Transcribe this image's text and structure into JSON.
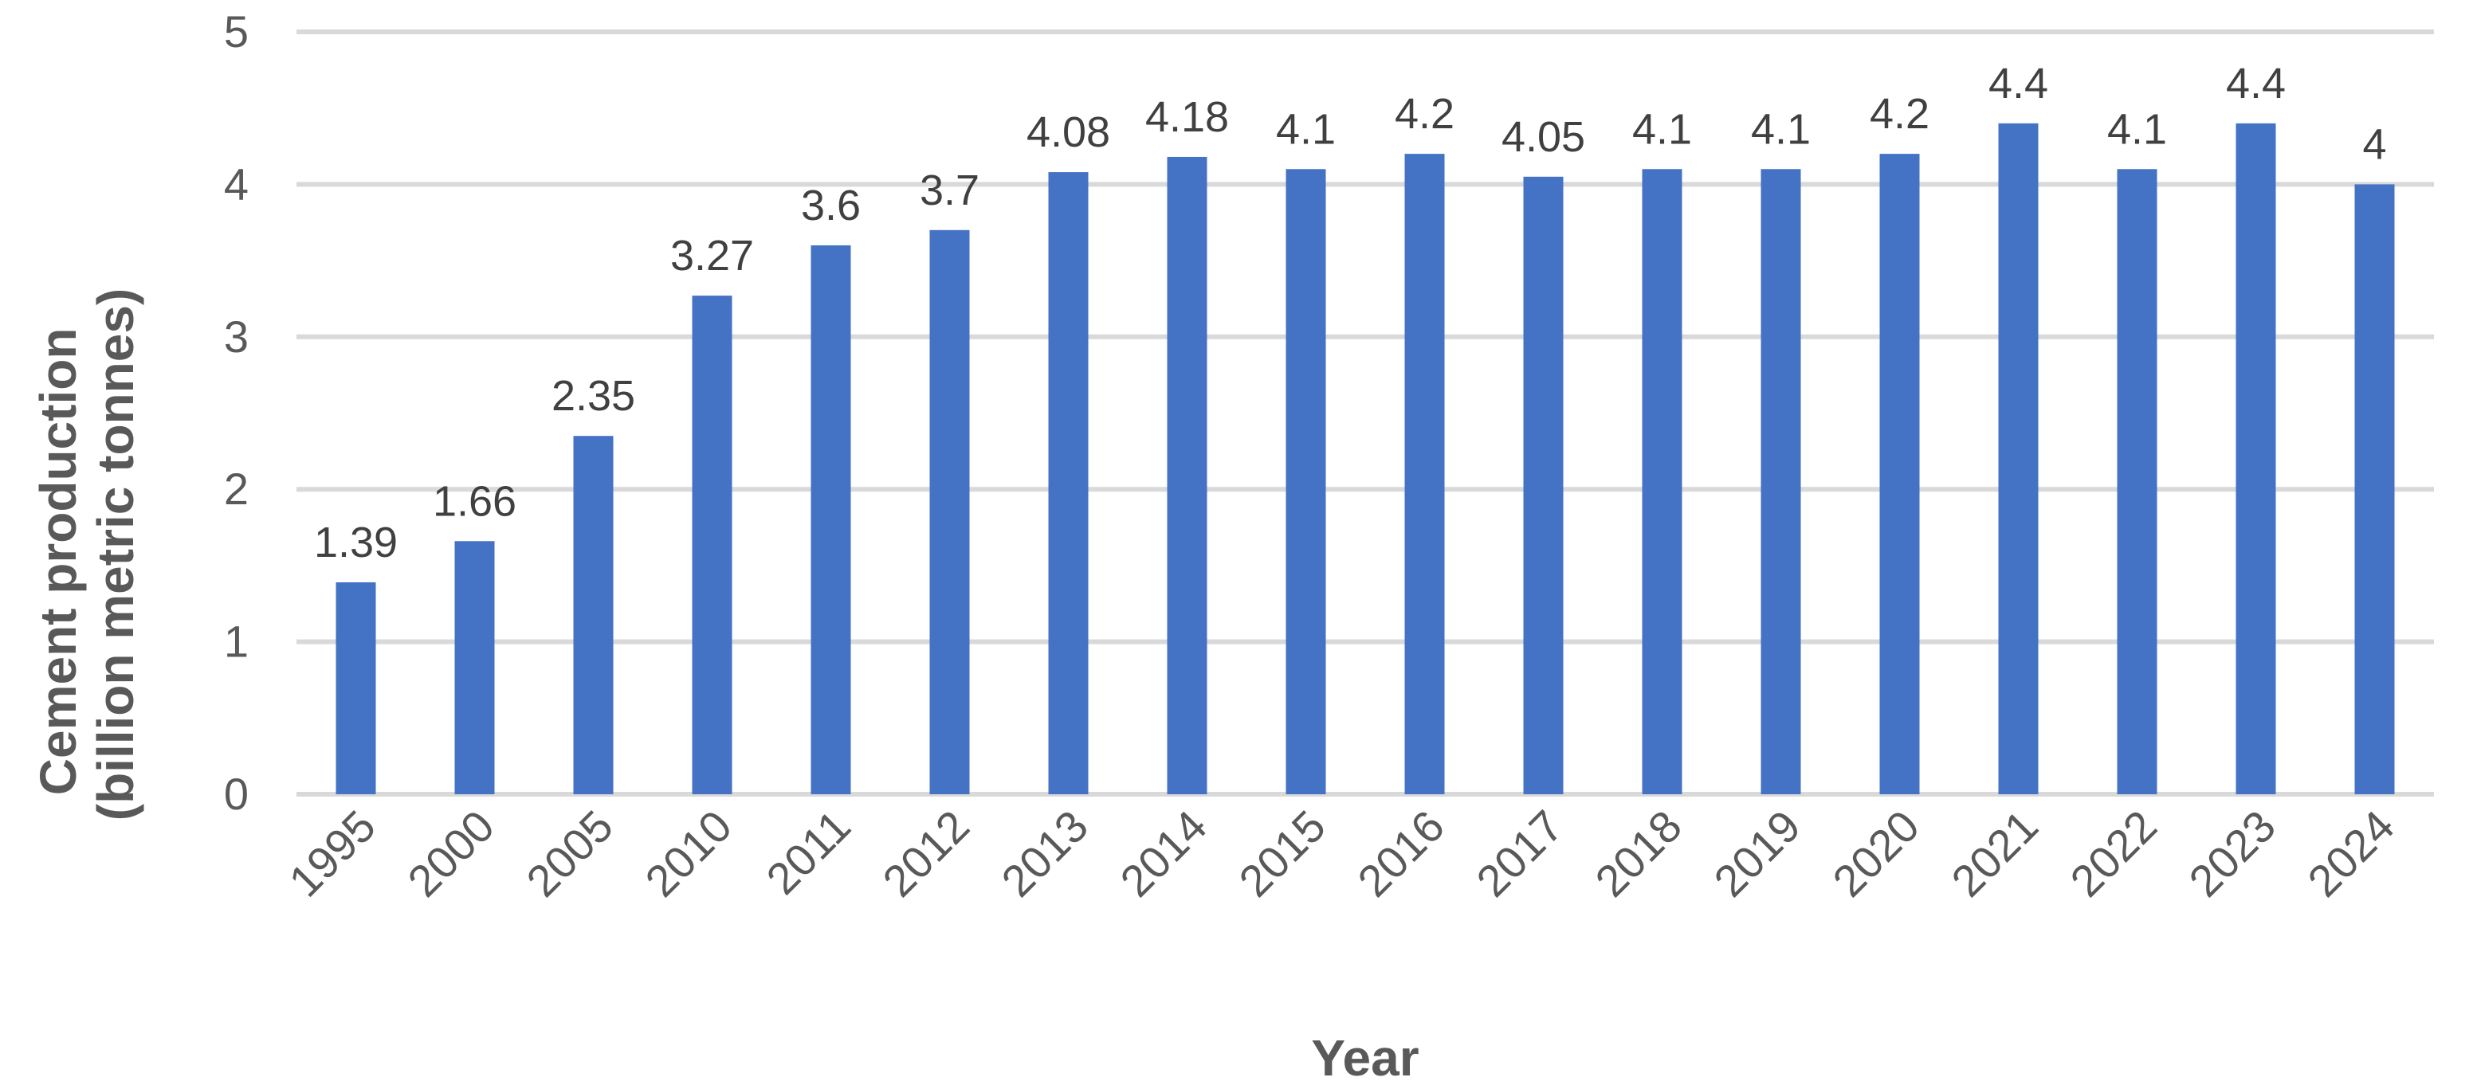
{
  "chart_data": {
    "type": "bar",
    "title": "",
    "xlabel": "Year",
    "ylabel_line1": "Cement production",
    "ylabel_line2": "(billion metric tonnes)",
    "categories": [
      "1995",
      "2000",
      "2005",
      "2010",
      "2011",
      "2012",
      "2013",
      "2014",
      "2015",
      "2016",
      "2017",
      "2018",
      "2019",
      "2020",
      "2021",
      "2022",
      "2023",
      "2024"
    ],
    "values": [
      1.39,
      1.66,
      2.35,
      3.27,
      3.6,
      3.7,
      4.08,
      4.18,
      4.1,
      4.2,
      4.05,
      4.1,
      4.1,
      4.2,
      4.4,
      4.1,
      4.4,
      4
    ],
    "data_labels": [
      "1.39",
      "1.66",
      "2.35",
      "3.27",
      "3.6",
      "3.7",
      "4.08",
      "4.18",
      "4.1",
      "4.2",
      "4.05",
      "4.1",
      "4.1",
      "4.2",
      "4.4",
      "4.1",
      "4.4",
      "4"
    ],
    "ylim": [
      0,
      5
    ],
    "yticks": [
      0,
      1,
      2,
      3,
      4,
      5
    ],
    "grid": true,
    "legend": "none",
    "bar_color": "#4472c4"
  }
}
